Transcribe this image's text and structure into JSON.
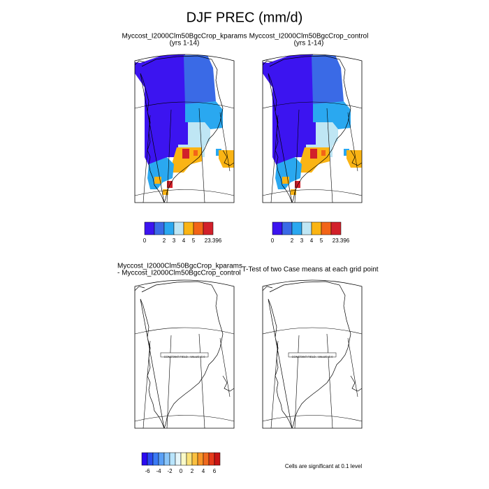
{
  "title": "DJF PREC (mm/d)",
  "panels": [
    {
      "title": "Myccost_I2000Clm50BgcCrop_kparams",
      "subtitle": "(yrs 1-14)"
    },
    {
      "title": "Myccost_I2000Clm50BgcCrop_control",
      "subtitle": "(yrs 1-14)"
    }
  ],
  "colorbar": {
    "colors": [
      "#3c14f0",
      "#3a6ae6",
      "#2aa8f0",
      "#bfe6f4",
      "#fab414",
      "#f26418",
      "#d2202a"
    ],
    "labels": [
      "0",
      "2",
      "3",
      "4",
      "5",
      "23.396"
    ]
  },
  "diff_panels": [
    {
      "title": "Myccost_I2000Clm50BgcCrop_kparams",
      "subtitle": "- Myccost_I2000Clm50BgcCrop_control",
      "note": "CONSTANT FIELD - VALUE IS 0"
    },
    {
      "title": "T-Test of two Case means at each grid point",
      "note": "CONSTANT FIELD - VALUE IS 0"
    }
  ],
  "diff_colorbar": {
    "colors": [
      "#2a0af0",
      "#2a4af0",
      "#3a7af4",
      "#5aa0f6",
      "#8ac6fa",
      "#b8e4fc",
      "#e6f6fa",
      "#fafac8",
      "#fae27a",
      "#fac040",
      "#f89428",
      "#f06a1e",
      "#e63a1a",
      "#c81414"
    ],
    "labels": [
      "-6",
      "-4",
      "-2",
      "0",
      "2",
      "4",
      "6"
    ]
  },
  "significance_note": "Cells are significant at 0.1 level"
}
